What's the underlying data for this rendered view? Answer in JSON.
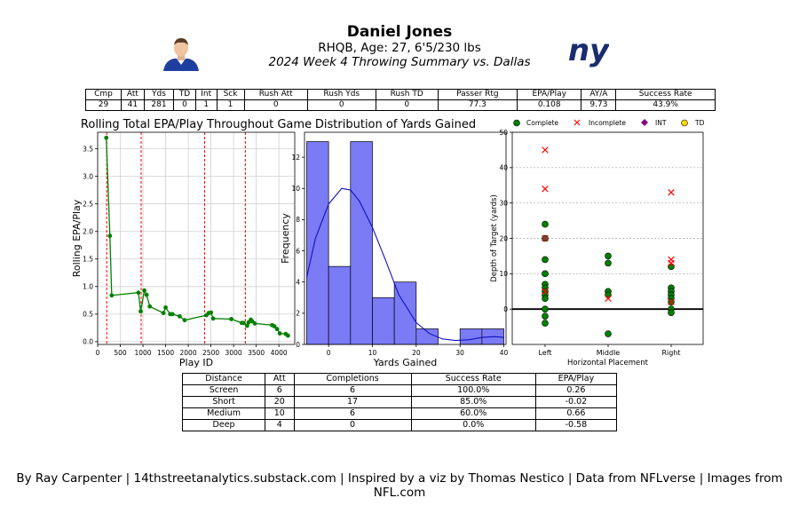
{
  "header": {
    "name": "Daniel Jones",
    "info": "RHQB, Age: 27, 6'5/230 lbs",
    "subtitle": "2024 Week 4 Throwing Summary vs. Dallas",
    "team_logo_text": "ny",
    "team_color": "#1a2d6e"
  },
  "stats": {
    "headers": [
      "Cmp",
      "Att",
      "Yds",
      "TD",
      "Int",
      "Sck",
      "Rush Att",
      "Rush Yds",
      "Rush TD",
      "Passer Rtg",
      "EPA/Play",
      "AY/A",
      "Success Rate"
    ],
    "values": [
      "29",
      "41",
      "281",
      "0",
      "1",
      "1",
      "0",
      "0",
      "0",
      "77.3",
      "0.108",
      "9.73",
      "43.9%"
    ]
  },
  "distance_table": {
    "headers": [
      "Distance",
      "Att",
      "Completions",
      "Success Rate",
      "EPA/Play"
    ],
    "rows": [
      [
        "Screen",
        "6",
        "6",
        "100.0%",
        "0.26"
      ],
      [
        "Short",
        "20",
        "17",
        "85.0%",
        "-0.02"
      ],
      [
        "Medium",
        "10",
        "6",
        "60.0%",
        "0.66"
      ],
      [
        "Deep",
        "4",
        "0",
        "0.0%",
        "-0.58"
      ]
    ]
  },
  "footer": "By Ray Carpenter | 14thstreetanalytics.substack.com | Inspired by a viz by Thomas Nestico | Data from NFLverse | Images from NFL.com",
  "chart_data": [
    {
      "type": "line",
      "title": "Rolling Total EPA/Play Throughout Game",
      "xlabel": "Play ID",
      "ylabel": "Rolling EPA/Play",
      "xlim": [
        0,
        4350
      ],
      "ylim": [
        -0.05,
        3.8
      ],
      "xticks": [
        0,
        500,
        1000,
        1500,
        2000,
        2500,
        3000,
        3500,
        4000
      ],
      "yticks": [
        0.0,
        0.5,
        1.0,
        1.5,
        2.0,
        2.5,
        3.0,
        3.5
      ],
      "grid": true,
      "color": "#008000",
      "vlines": [
        200,
        960,
        2360,
        3260
      ],
      "vline_color": "#ff0000",
      "points": [
        [
          190,
          3.7
        ],
        [
          270,
          1.92
        ],
        [
          310,
          0.84
        ],
        [
          900,
          0.89
        ],
        [
          950,
          0.55
        ],
        [
          1030,
          0.93
        ],
        [
          1080,
          0.85
        ],
        [
          1150,
          0.64
        ],
        [
          1450,
          0.52
        ],
        [
          1500,
          0.62
        ],
        [
          1600,
          0.5
        ],
        [
          1650,
          0.5
        ],
        [
          1810,
          0.46
        ],
        [
          1920,
          0.39
        ],
        [
          2400,
          0.48
        ],
        [
          2450,
          0.52
        ],
        [
          2500,
          0.53
        ],
        [
          2550,
          0.42
        ],
        [
          2950,
          0.41
        ],
        [
          3180,
          0.34
        ],
        [
          3220,
          0.34
        ],
        [
          3300,
          0.29
        ],
        [
          3330,
          0.35
        ],
        [
          3380,
          0.4
        ],
        [
          3410,
          0.37
        ],
        [
          3470,
          0.33
        ],
        [
          3850,
          0.3
        ],
        [
          3900,
          0.28
        ],
        [
          3960,
          0.23
        ],
        [
          4020,
          0.15
        ],
        [
          4150,
          0.14
        ],
        [
          4200,
          0.11
        ]
      ]
    },
    {
      "type": "bar",
      "title": "Distribution of Yards Gained",
      "xlabel": "Yards Gained",
      "ylabel": "Frequency",
      "bin_edges": [
        -5,
        0,
        5,
        10,
        15,
        20,
        25,
        30,
        35,
        40
      ],
      "counts": [
        13,
        5,
        13,
        3,
        4,
        1,
        0,
        1,
        1
      ],
      "xlim": [
        -5.5,
        40.5
      ],
      "ylim": [
        0,
        13.6
      ],
      "xticks": [
        0,
        10,
        20,
        30,
        40
      ],
      "yticks": [
        0,
        2,
        4,
        6,
        8,
        10,
        12
      ],
      "color": "#7b7bf6",
      "kde": [
        [
          -5,
          4.3
        ],
        [
          -3,
          6.8
        ],
        [
          0,
          9
        ],
        [
          3,
          10
        ],
        [
          5,
          9.9
        ],
        [
          7,
          9.2
        ],
        [
          10,
          7.5
        ],
        [
          13,
          5.4
        ],
        [
          16,
          3.2
        ],
        [
          20,
          1.4
        ],
        [
          23,
          0.7
        ],
        [
          26,
          0.35
        ],
        [
          29,
          0.25
        ],
        [
          32,
          0.3
        ],
        [
          35,
          0.45
        ],
        [
          38,
          0.5
        ],
        [
          40,
          0.45
        ]
      ]
    },
    {
      "type": "scatter",
      "xlabel": "Horizontal Placement",
      "ylabel": "Depth of Target (yards)",
      "categories": [
        "Left",
        "Middle",
        "Right"
      ],
      "ylim": [
        -10,
        50
      ],
      "yticks": [
        0,
        10,
        20,
        30,
        40,
        50
      ],
      "grid": true,
      "legend_position": "top",
      "legend": [
        "Complete",
        "Incomplete",
        "INT",
        "TD"
      ],
      "complete_color": "#008000",
      "incomplete_color": "#ff0000",
      "int_color": "#800080",
      "td_color": "#ffd700",
      "complete": [
        [
          0,
          24
        ],
        [
          0,
          20
        ],
        [
          0,
          14
        ],
        [
          0,
          10
        ],
        [
          0,
          7
        ],
        [
          0,
          6
        ],
        [
          0,
          5
        ],
        [
          0,
          4
        ],
        [
          0,
          3
        ],
        [
          0,
          0
        ],
        [
          0,
          -2
        ],
        [
          0,
          -4
        ],
        [
          1,
          15
        ],
        [
          1,
          13
        ],
        [
          1,
          5
        ],
        [
          1,
          4
        ],
        [
          1,
          -7
        ],
        [
          2,
          12
        ],
        [
          2,
          6
        ],
        [
          2,
          5
        ],
        [
          2,
          4
        ],
        [
          2,
          3
        ],
        [
          2,
          2
        ],
        [
          2,
          0
        ],
        [
          2,
          -1
        ]
      ],
      "incomplete": [
        [
          0,
          45
        ],
        [
          0,
          34
        ],
        [
          0,
          20
        ],
        [
          0,
          5
        ],
        [
          1,
          3
        ],
        [
          2,
          33
        ],
        [
          2,
          14
        ],
        [
          2,
          13
        ],
        [
          2,
          2
        ]
      ],
      "interception": [
        [
          0,
          20
        ]
      ],
      "touchdown": []
    }
  ]
}
